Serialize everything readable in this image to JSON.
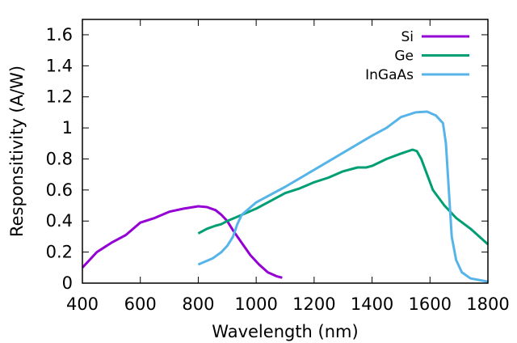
{
  "chart_data": {
    "type": "line",
    "title": "",
    "xlabel": "Wavelength (nm)",
    "ylabel": "Responsitivity (A/W)",
    "xlim": [
      400,
      1800
    ],
    "ylim": [
      0,
      1.7
    ],
    "xticks": [
      400,
      600,
      800,
      1000,
      1200,
      1400,
      1600,
      1800
    ],
    "xtick_labels": [
      "400",
      "600",
      "800",
      "1000",
      "1200",
      "1400",
      "1600",
      "1800"
    ],
    "yticks": [
      0,
      0.2,
      0.4,
      0.6,
      0.8,
      1,
      1.2,
      1.4,
      1.6
    ],
    "ytick_labels": [
      "0",
      "0.2",
      "0.4",
      "0.6",
      "0.8",
      "1",
      "1.2",
      "1.4",
      "1.6"
    ],
    "grid": false,
    "legend_position": "top-right",
    "series": [
      {
        "name": "Si",
        "color": "#9400d3",
        "x": [
          400,
          420,
          450,
          500,
          550,
          600,
          650,
          700,
          750,
          800,
          830,
          860,
          880,
          900,
          920,
          950,
          980,
          1010,
          1040,
          1070,
          1090
        ],
        "y": [
          0.1,
          0.14,
          0.2,
          0.26,
          0.31,
          0.39,
          0.42,
          0.46,
          0.48,
          0.495,
          0.49,
          0.47,
          0.44,
          0.4,
          0.34,
          0.26,
          0.18,
          0.12,
          0.07,
          0.045,
          0.035
        ]
      },
      {
        "name": "Ge",
        "color": "#009e73",
        "x": [
          800,
          830,
          860,
          880,
          900,
          950,
          1000,
          1050,
          1100,
          1150,
          1200,
          1250,
          1300,
          1350,
          1380,
          1400,
          1450,
          1500,
          1540,
          1555,
          1570,
          1590,
          1610,
          1650,
          1690,
          1740,
          1800
        ],
        "y": [
          0.32,
          0.35,
          0.37,
          0.38,
          0.4,
          0.44,
          0.48,
          0.53,
          0.58,
          0.61,
          0.65,
          0.68,
          0.72,
          0.745,
          0.745,
          0.755,
          0.8,
          0.835,
          0.86,
          0.85,
          0.8,
          0.7,
          0.6,
          0.5,
          0.42,
          0.35,
          0.25
        ]
      },
      {
        "name": "InGaAs",
        "color": "#56b4e9",
        "x": [
          800,
          850,
          880,
          900,
          920,
          935,
          950,
          1000,
          1100,
          1200,
          1300,
          1400,
          1450,
          1500,
          1550,
          1590,
          1620,
          1645,
          1655,
          1665,
          1675,
          1690,
          1710,
          1740,
          1800
        ],
        "y": [
          0.12,
          0.16,
          0.2,
          0.24,
          0.3,
          0.38,
          0.44,
          0.52,
          0.62,
          0.73,
          0.84,
          0.95,
          1.0,
          1.07,
          1.1,
          1.105,
          1.08,
          1.03,
          0.9,
          0.6,
          0.3,
          0.15,
          0.07,
          0.03,
          0.01
        ]
      }
    ]
  }
}
